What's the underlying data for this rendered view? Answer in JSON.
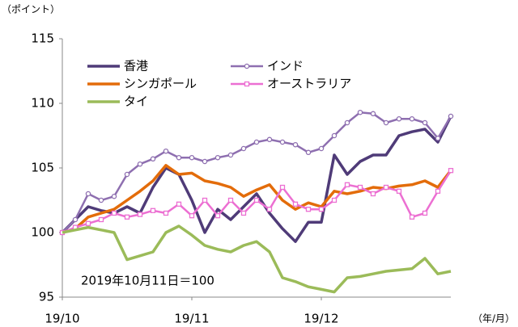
{
  "chart_data": {
    "type": "line",
    "y_label": "（ポイント）",
    "x_label": "（年/月）",
    "annotation": "2019年10月11日＝100",
    "x": [
      0,
      2,
      4,
      6,
      8,
      10,
      12,
      14,
      16,
      18,
      20,
      22,
      24,
      26,
      28,
      30,
      32,
      34,
      36,
      38,
      40,
      42,
      44,
      46,
      48,
      50,
      52,
      54,
      56,
      58,
      60
    ],
    "xlim": [
      0,
      60
    ],
    "xticks": [
      {
        "value": 0,
        "label": "19/10"
      },
      {
        "value": 20,
        "label": "19/11"
      },
      {
        "value": 40,
        "label": "19/12"
      }
    ],
    "ylim": [
      95,
      115
    ],
    "yticks": [
      95,
      100,
      105,
      110,
      115
    ],
    "series": [
      {
        "name": "香港",
        "color": "#4f3b78",
        "marker": "none",
        "values": [
          100,
          101,
          102,
          101.7,
          101.5,
          102,
          101.5,
          103.5,
          105,
          104.5,
          102.5,
          100,
          101.8,
          101,
          102,
          103,
          101.5,
          100.3,
          99.3,
          100.8,
          100.8,
          106,
          104.5,
          105.5,
          106,
          106,
          107.5,
          107.8,
          108,
          107,
          109
        ]
      },
      {
        "name": "インド",
        "color": "#8e6fb0",
        "marker": "circle",
        "values": [
          100,
          101,
          103,
          102.5,
          102.8,
          104.5,
          105.3,
          105.7,
          106.3,
          105.8,
          105.8,
          105.5,
          105.8,
          106,
          106.5,
          107,
          107.2,
          107,
          106.8,
          106.2,
          106.5,
          107.5,
          108.5,
          109.3,
          109.2,
          108.5,
          108.8,
          108.8,
          108.5,
          107.3,
          109
        ]
      },
      {
        "name": "シンガポール",
        "color": "#e36c0a",
        "marker": "none",
        "values": [
          100,
          100.3,
          101.2,
          101.5,
          101.8,
          102.5,
          103.2,
          104,
          105.2,
          104.5,
          104.6,
          104,
          103.8,
          103.5,
          102.8,
          103.3,
          103.7,
          102.5,
          101.8,
          102.3,
          102,
          103.2,
          103,
          103.2,
          103.5,
          103.4,
          103.6,
          103.7,
          104,
          103.5,
          104.8
        ]
      },
      {
        "name": "オーストラリア",
        "color": "#ec6fd2",
        "marker": "square",
        "values": [
          100,
          100.4,
          100.7,
          101,
          101.5,
          101.2,
          101.4,
          101.7,
          101.5,
          102.2,
          101.3,
          102.5,
          101.3,
          102.5,
          101.5,
          102.5,
          101.8,
          103.5,
          102.2,
          101.8,
          101.8,
          102.5,
          103.7,
          103.5,
          103,
          103.5,
          103.2,
          101.2,
          101.5,
          103.2,
          104.8
        ]
      },
      {
        "name": "タイ",
        "color": "#9bbb59",
        "marker": "none",
        "values": [
          100,
          100.2,
          100.4,
          100.2,
          100,
          97.9,
          98.2,
          98.5,
          100,
          100.5,
          99.8,
          99,
          98.7,
          98.5,
          99,
          99.3,
          98.5,
          96.5,
          96.2,
          95.8,
          95.6,
          95.4,
          96.5,
          96.6,
          96.8,
          97,
          97.1,
          97.2,
          98,
          96.8,
          97
        ]
      }
    ]
  }
}
